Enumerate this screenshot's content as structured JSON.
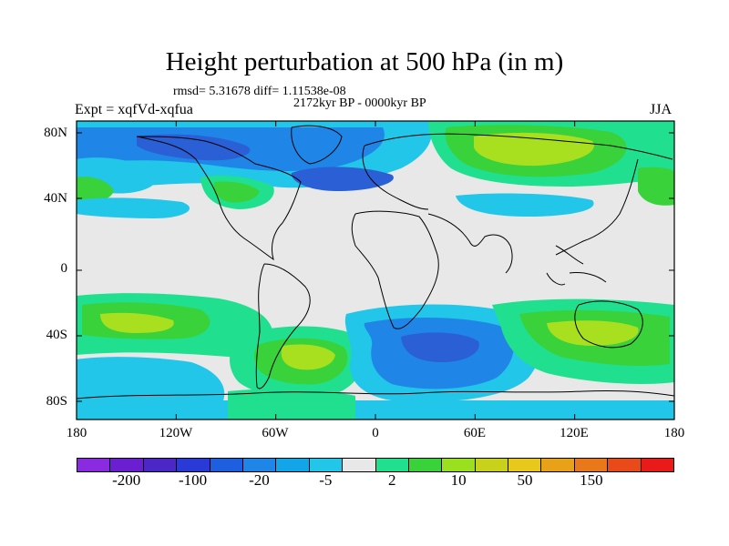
{
  "title": "Height perturbation at 500 hPa (in m)",
  "stats": "rmsd= 5.31678 diff= 1.11538e-08",
  "period": "2172kyr BP - 0000kyr BP",
  "experiment": "Expt = xqfVd-xqfua",
  "season": "JJA",
  "lat_labels": [
    "80N",
    "40N",
    "0",
    "40S",
    "80S"
  ],
  "lon_labels": [
    "180",
    "120W",
    "60W",
    "0",
    "60E",
    "120E",
    "180"
  ],
  "colorbar": {
    "colors": [
      "#8a2be2",
      "#6a1fd0",
      "#4b27c8",
      "#2a3ad6",
      "#1e5fe0",
      "#1f86e8",
      "#12a6e8",
      "#22c6e8",
      "#e8e8e8",
      "#20e090",
      "#39d23b",
      "#9be01e",
      "#c8d21a",
      "#e8c81a",
      "#e8a21a",
      "#e8781a",
      "#e84a1a",
      "#e81a1a"
    ],
    "labels": [
      "-200",
      "-100",
      "-20",
      "-5",
      "2",
      "10",
      "50",
      "150"
    ]
  },
  "fill_colors": {
    "background": "#e8e8e8",
    "deep_blue": "#2a5fd6",
    "blue": "#1f86e8",
    "light_blue": "#22c6e8",
    "mint": "#20e090",
    "green": "#39d23b",
    "yellow_green": "#a8e020"
  }
}
